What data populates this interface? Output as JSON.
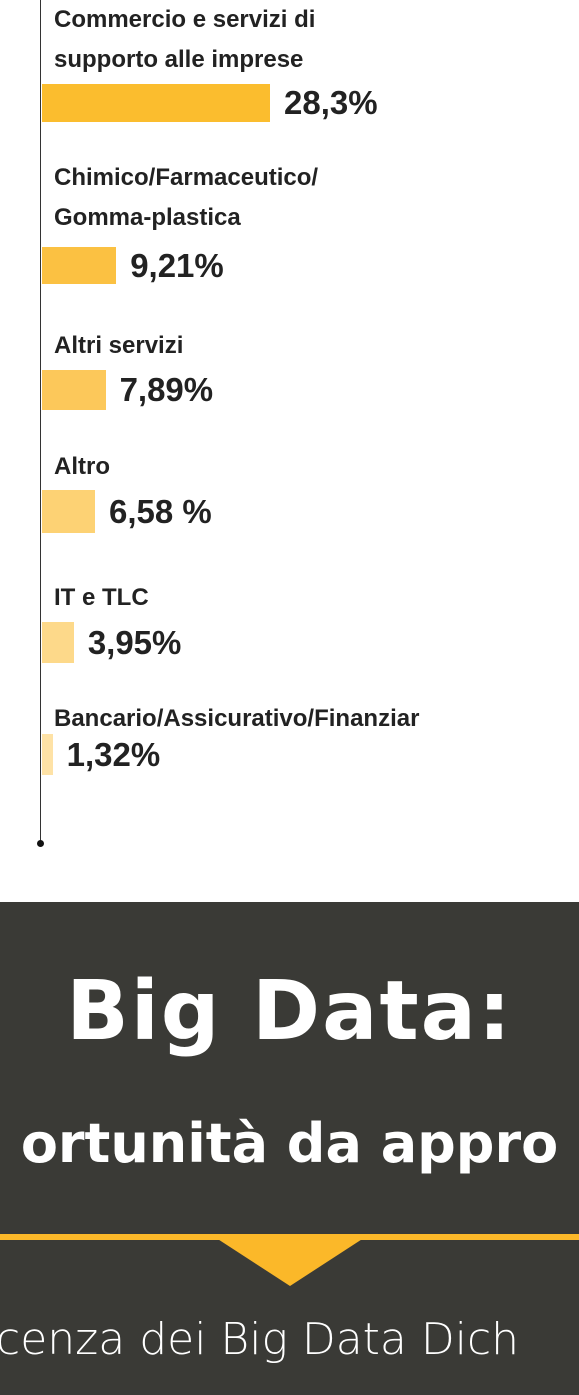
{
  "chart_data": {
    "type": "hbar",
    "categories": [
      "Commercio e servizi di\nsupporto alle imprese",
      "Chimico/Farmaceutico/\nGomma-plastica",
      "Altri servizi",
      "Altro",
      "IT e TLC",
      "Bancario/Assicurativo/Finanziar"
    ],
    "values": [
      28.3,
      9.21,
      7.89,
      6.58,
      3.95,
      1.32
    ],
    "value_labels": [
      "28,3%",
      "9,21%",
      "7,89%",
      "6,58 %",
      "3,95%",
      "1,32%"
    ],
    "colors": [
      "#fbbd2e",
      "#fbc142",
      "#fcc85a",
      "#fdd274",
      "#fdd98a",
      "#fee2a6"
    ]
  },
  "banner": {
    "title": "Big Data:",
    "subtitle": "ortunità da appro",
    "footer": "cenza dei Big Data Dich"
  }
}
